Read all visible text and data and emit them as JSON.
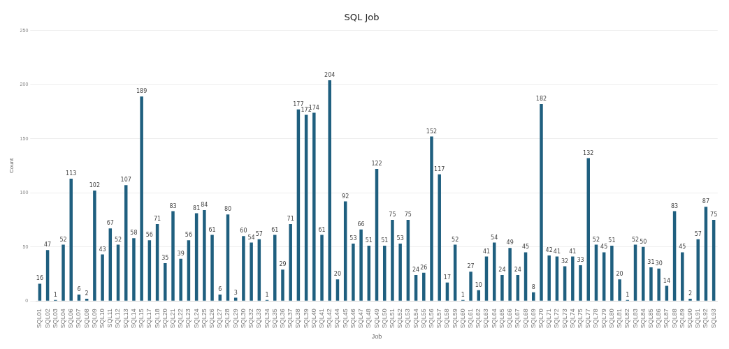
{
  "chart_data": {
    "type": "bar",
    "title": "SQL Job",
    "xlabel": "Job",
    "ylabel": "Count",
    "categories": [
      "SQL01",
      "SQL02",
      "SQL03",
      "SQL04",
      "SQL06",
      "SQL07",
      "SQL08",
      "SQL09",
      "SQL10",
      "SQL11",
      "SQL12",
      "SQL13",
      "SQL14",
      "SQL15",
      "SQL17",
      "SQL18",
      "SQL20",
      "SQL21",
      "SQL22",
      "SQL23",
      "SQL24",
      "SQL25",
      "SQL26",
      "SQL27",
      "SQL28",
      "SQL29",
      "SQL30",
      "SQL32",
      "SQL33",
      "SQL34",
      "SQL35",
      "SQL36",
      "SQL37",
      "SQL38",
      "SQL39",
      "SQL40",
      "SQL41",
      "SQL42",
      "SQL44",
      "SQL45",
      "SQL46",
      "SQL47",
      "SQL48",
      "SQL49",
      "SQL50",
      "SQL51",
      "SQL52",
      "SQL53",
      "SQL54",
      "SQL55",
      "SQL56",
      "SQL57",
      "SQL58",
      "SQL59",
      "SQL60",
      "SQL61",
      "SQL62",
      "SQL63",
      "SQL64",
      "SQL65",
      "SQL66",
      "SQL67",
      "SQL68",
      "SQL69",
      "SQL70",
      "SQL71",
      "SQL72",
      "SQL73",
      "SQL74",
      "SQL75",
      "SQL77",
      "SQL78",
      "SQL79",
      "SQL80",
      "SQL81",
      "SQL82",
      "SQL83",
      "SQL84",
      "SQL85",
      "SQL86",
      "SQL87",
      "SQL88",
      "SQL89",
      "SQL90",
      "SQL91",
      "SQL92",
      "SQL93"
    ],
    "values": [
      16,
      47,
      1,
      52,
      113,
      6,
      2,
      102,
      43,
      67,
      52,
      107,
      58,
      189,
      56,
      71,
      35,
      83,
      39,
      56,
      81,
      84,
      61,
      6,
      80,
      3,
      60,
      54,
      57,
      1,
      61,
      29,
      71,
      177,
      172,
      174,
      61,
      204,
      20,
      92,
      53,
      66,
      51,
      122,
      51,
      75,
      53,
      75,
      24,
      26,
      152,
      117,
      17,
      52,
      1,
      27,
      10,
      41,
      54,
      24,
      49,
      24,
      45,
      8,
      182,
      42,
      41,
      32,
      41,
      33,
      132,
      52,
      45,
      51,
      20,
      1,
      52,
      50,
      31,
      30,
      14,
      83,
      45,
      2,
      57,
      87,
      75
    ],
    "color": "#1f5f7f",
    "ylim": [
      0,
      250
    ],
    "yticks": [
      0,
      50,
      100,
      150,
      200,
      250
    ],
    "grid": "y",
    "data_labels": true,
    "legend": false
  }
}
